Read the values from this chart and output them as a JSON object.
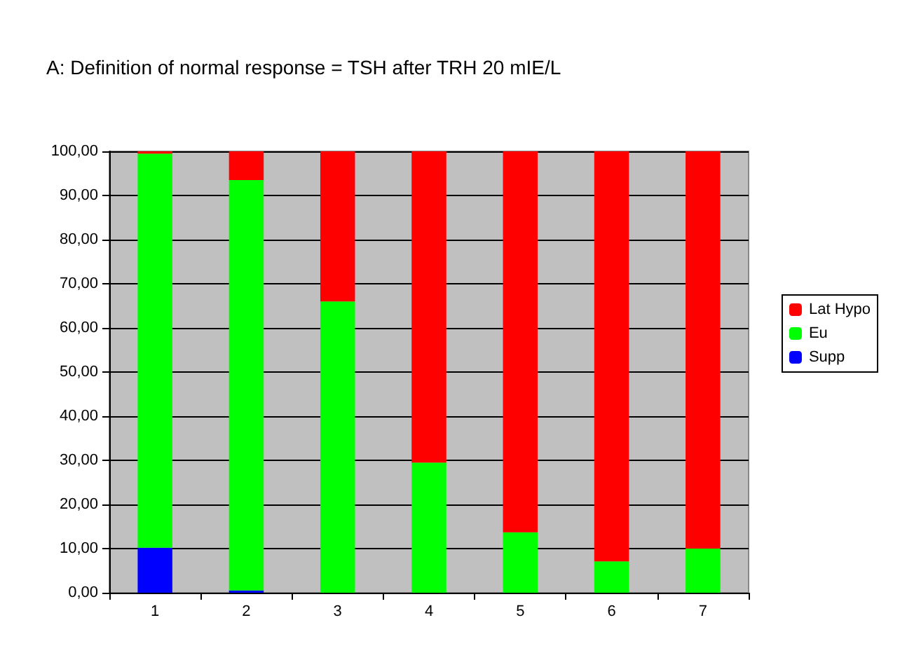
{
  "chart_data": {
    "type": "bar",
    "title": "A: Definition of normal response = TSH after TRH 20 mIE/L",
    "categories": [
      "1",
      "2",
      "3",
      "4",
      "5",
      "6",
      "7"
    ],
    "stacked": true,
    "series": [
      {
        "name": "Supp",
        "color": "#0000ff",
        "values": [
          10.2,
          0.5,
          0,
          0,
          0,
          0,
          0
        ]
      },
      {
        "name": "Eu",
        "color": "#00ff00",
        "values": [
          89.3,
          93,
          66,
          29.5,
          13.7,
          7.1,
          10
        ]
      },
      {
        "name": "Lat Hypo",
        "color": "#ff0000",
        "values": [
          0.5,
          6.5,
          34,
          70.5,
          86.3,
          92.9,
          90
        ]
      }
    ],
    "ylim": [
      0,
      100
    ],
    "yticks": [
      {
        "value": 0,
        "label": "0,00"
      },
      {
        "value": 10,
        "label": "10,00"
      },
      {
        "value": 20,
        "label": "20,00"
      },
      {
        "value": 30,
        "label": "30,00"
      },
      {
        "value": 40,
        "label": "40,00"
      },
      {
        "value": 50,
        "label": "50,00"
      },
      {
        "value": 60,
        "label": "60,00"
      },
      {
        "value": 70,
        "label": "70,00"
      },
      {
        "value": 80,
        "label": "80,00"
      },
      {
        "value": 90,
        "label": "90,00"
      },
      {
        "value": 100,
        "label": "100,00"
      }
    ],
    "grid": "y",
    "legend": "right"
  }
}
